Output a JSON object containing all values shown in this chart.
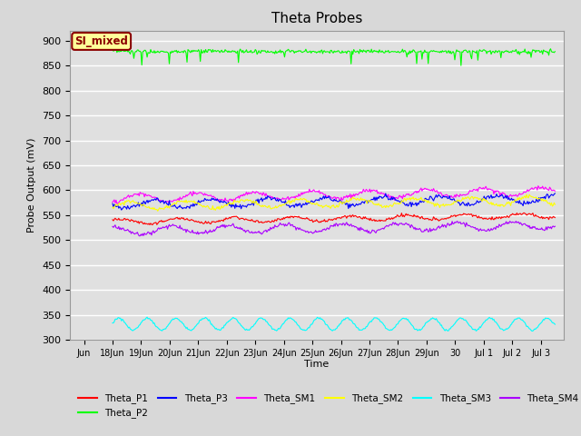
{
  "title": "Theta Probes",
  "xlabel": "Time",
  "ylabel": "Probe Output (mV)",
  "ylim": [
    300,
    920
  ],
  "yticks": [
    300,
    350,
    400,
    450,
    500,
    550,
    600,
    650,
    700,
    750,
    800,
    850,
    900
  ],
  "background_color": "#d8d8d8",
  "plot_bg_color": "#e0e0e0",
  "annotation_text": "SI_mixed",
  "annotation_bg": "#ffff99",
  "annotation_border": "#8b0000",
  "series": {
    "Theta_P1": {
      "color": "#ff0000",
      "base": 537,
      "trend": 0.8,
      "amp": 5,
      "period": 2.0,
      "noise": 1.5
    },
    "Theta_P2": {
      "color": "#00ff00",
      "base": 878,
      "trend": 0.0,
      "amp": 0,
      "period": 1.0,
      "noise": 2.0
    },
    "Theta_P3": {
      "color": "#0000ff",
      "base": 572,
      "trend": 0.7,
      "amp": 8,
      "period": 2.0,
      "noise": 2.5
    },
    "Theta_SM1": {
      "color": "#ff00ff",
      "base": 584,
      "trend": 0.9,
      "amp": 8,
      "period": 2.0,
      "noise": 2.0
    },
    "Theta_SM2": {
      "color": "#ffff00",
      "base": 569,
      "trend": 0.7,
      "amp": 8,
      "period": 2.0,
      "noise": 2.0
    },
    "Theta_SM3": {
      "color": "#00ffff",
      "base": 332,
      "trend": 0.0,
      "amp": 12,
      "period": 1.0,
      "noise": 1.0
    },
    "Theta_SM4": {
      "color": "#aa00ff",
      "base": 519,
      "trend": 0.7,
      "amp": 8,
      "period": 2.0,
      "noise": 2.0
    }
  },
  "n_days": 15.5,
  "n_points": 500,
  "tick_labels": [
    "Jun",
    "18Jun",
    "19Jun",
    "20Jun",
    "21Jun",
    "22Jun",
    "23Jun",
    "24Jun",
    "25Jun",
    "26Jun",
    "27Jun",
    "28Jun",
    "29Jun",
    "30",
    "Jul 1",
    "Jul 2",
    "Jul 3"
  ],
  "tick_positions": [
    -1,
    0,
    1,
    2,
    3,
    4,
    5,
    6,
    7,
    8,
    9,
    10,
    11,
    12,
    13,
    14,
    15
  ],
  "legend_order": [
    "Theta_P1",
    "Theta_P2",
    "Theta_P3",
    "Theta_SM1",
    "Theta_SM2",
    "Theta_SM3",
    "Theta_SM4"
  ]
}
